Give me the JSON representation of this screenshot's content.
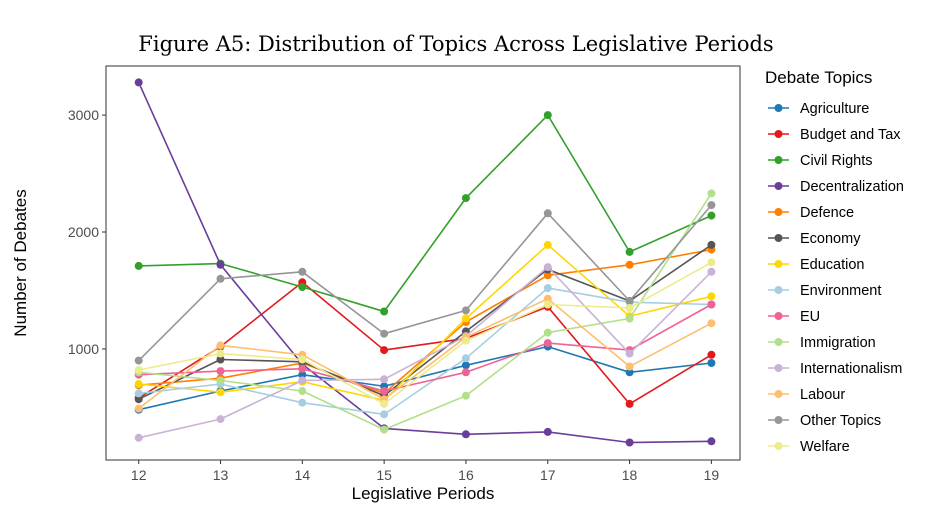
{
  "chart_data": {
    "type": "line",
    "title": "Figure A5: Distribution of Topics Across Legislative Periods",
    "xlabel": "Legislative Periods",
    "ylabel": "Number of Debates",
    "x": [
      12,
      13,
      14,
      15,
      16,
      17,
      18,
      19
    ],
    "yticks": [
      1000,
      2000,
      3000
    ],
    "ylim": [
      50,
      3420
    ],
    "xlim": [
      11.6,
      19.35
    ],
    "grid": false,
    "legend_title": "Debate Topics",
    "legend_position": "right",
    "series": [
      {
        "name": "Agriculture",
        "color": "#1f78b4",
        "values": [
          480,
          640,
          780,
          680,
          860,
          1020,
          800,
          880
        ]
      },
      {
        "name": "Budget and Tax",
        "color": "#e31a1c",
        "values": [
          580,
          1020,
          1570,
          990,
          1090,
          1360,
          530,
          950
        ]
      },
      {
        "name": "Civil Rights",
        "color": "#33a02c",
        "values": [
          1710,
          1730,
          1530,
          1320,
          2290,
          3000,
          1830,
          2140
        ]
      },
      {
        "name": "Decentralization",
        "color": "#6a3d9a",
        "values": [
          3280,
          1720,
          870,
          320,
          270,
          290,
          200,
          210
        ]
      },
      {
        "name": "Defence",
        "color": "#ff7f00",
        "values": [
          690,
          750,
          880,
          620,
          1230,
          1630,
          1720,
          1850
        ]
      },
      {
        "name": "Economy",
        "color": "#555555",
        "values": [
          570,
          910,
          890,
          600,
          1150,
          1680,
          1410,
          1890
        ]
      },
      {
        "name": "Education",
        "color": "#ffd700",
        "values": [
          700,
          630,
          720,
          560,
          1260,
          1890,
          1280,
          1450
        ]
      },
      {
        "name": "Environment",
        "color": "#a6cee3",
        "values": [
          620,
          700,
          540,
          440,
          920,
          1520,
          1400,
          1380
        ]
      },
      {
        "name": "EU",
        "color": "#f06292",
        "values": [
          780,
          810,
          830,
          640,
          800,
          1050,
          990,
          1380
        ]
      },
      {
        "name": "Immigration",
        "color": "#b2df8a",
        "values": [
          800,
          730,
          640,
          310,
          600,
          1140,
          1260,
          2330
        ]
      },
      {
        "name": "Internationalism",
        "color": "#cab2d6",
        "values": [
          240,
          400,
          730,
          740,
          1110,
          1700,
          960,
          1660
        ]
      },
      {
        "name": "Labour",
        "color": "#fdbf6f",
        "values": [
          490,
          1030,
          950,
          570,
          1100,
          1430,
          850,
          1220
        ]
      },
      {
        "name": "Other Topics",
        "color": "#969696",
        "values": [
          900,
          1600,
          1660,
          1130,
          1330,
          2160,
          1410,
          2230
        ]
      },
      {
        "name": "Welfare",
        "color": "#eeeb8a",
        "values": [
          820,
          960,
          910,
          530,
          1070,
          1380,
          1350,
          1740
        ]
      }
    ]
  }
}
